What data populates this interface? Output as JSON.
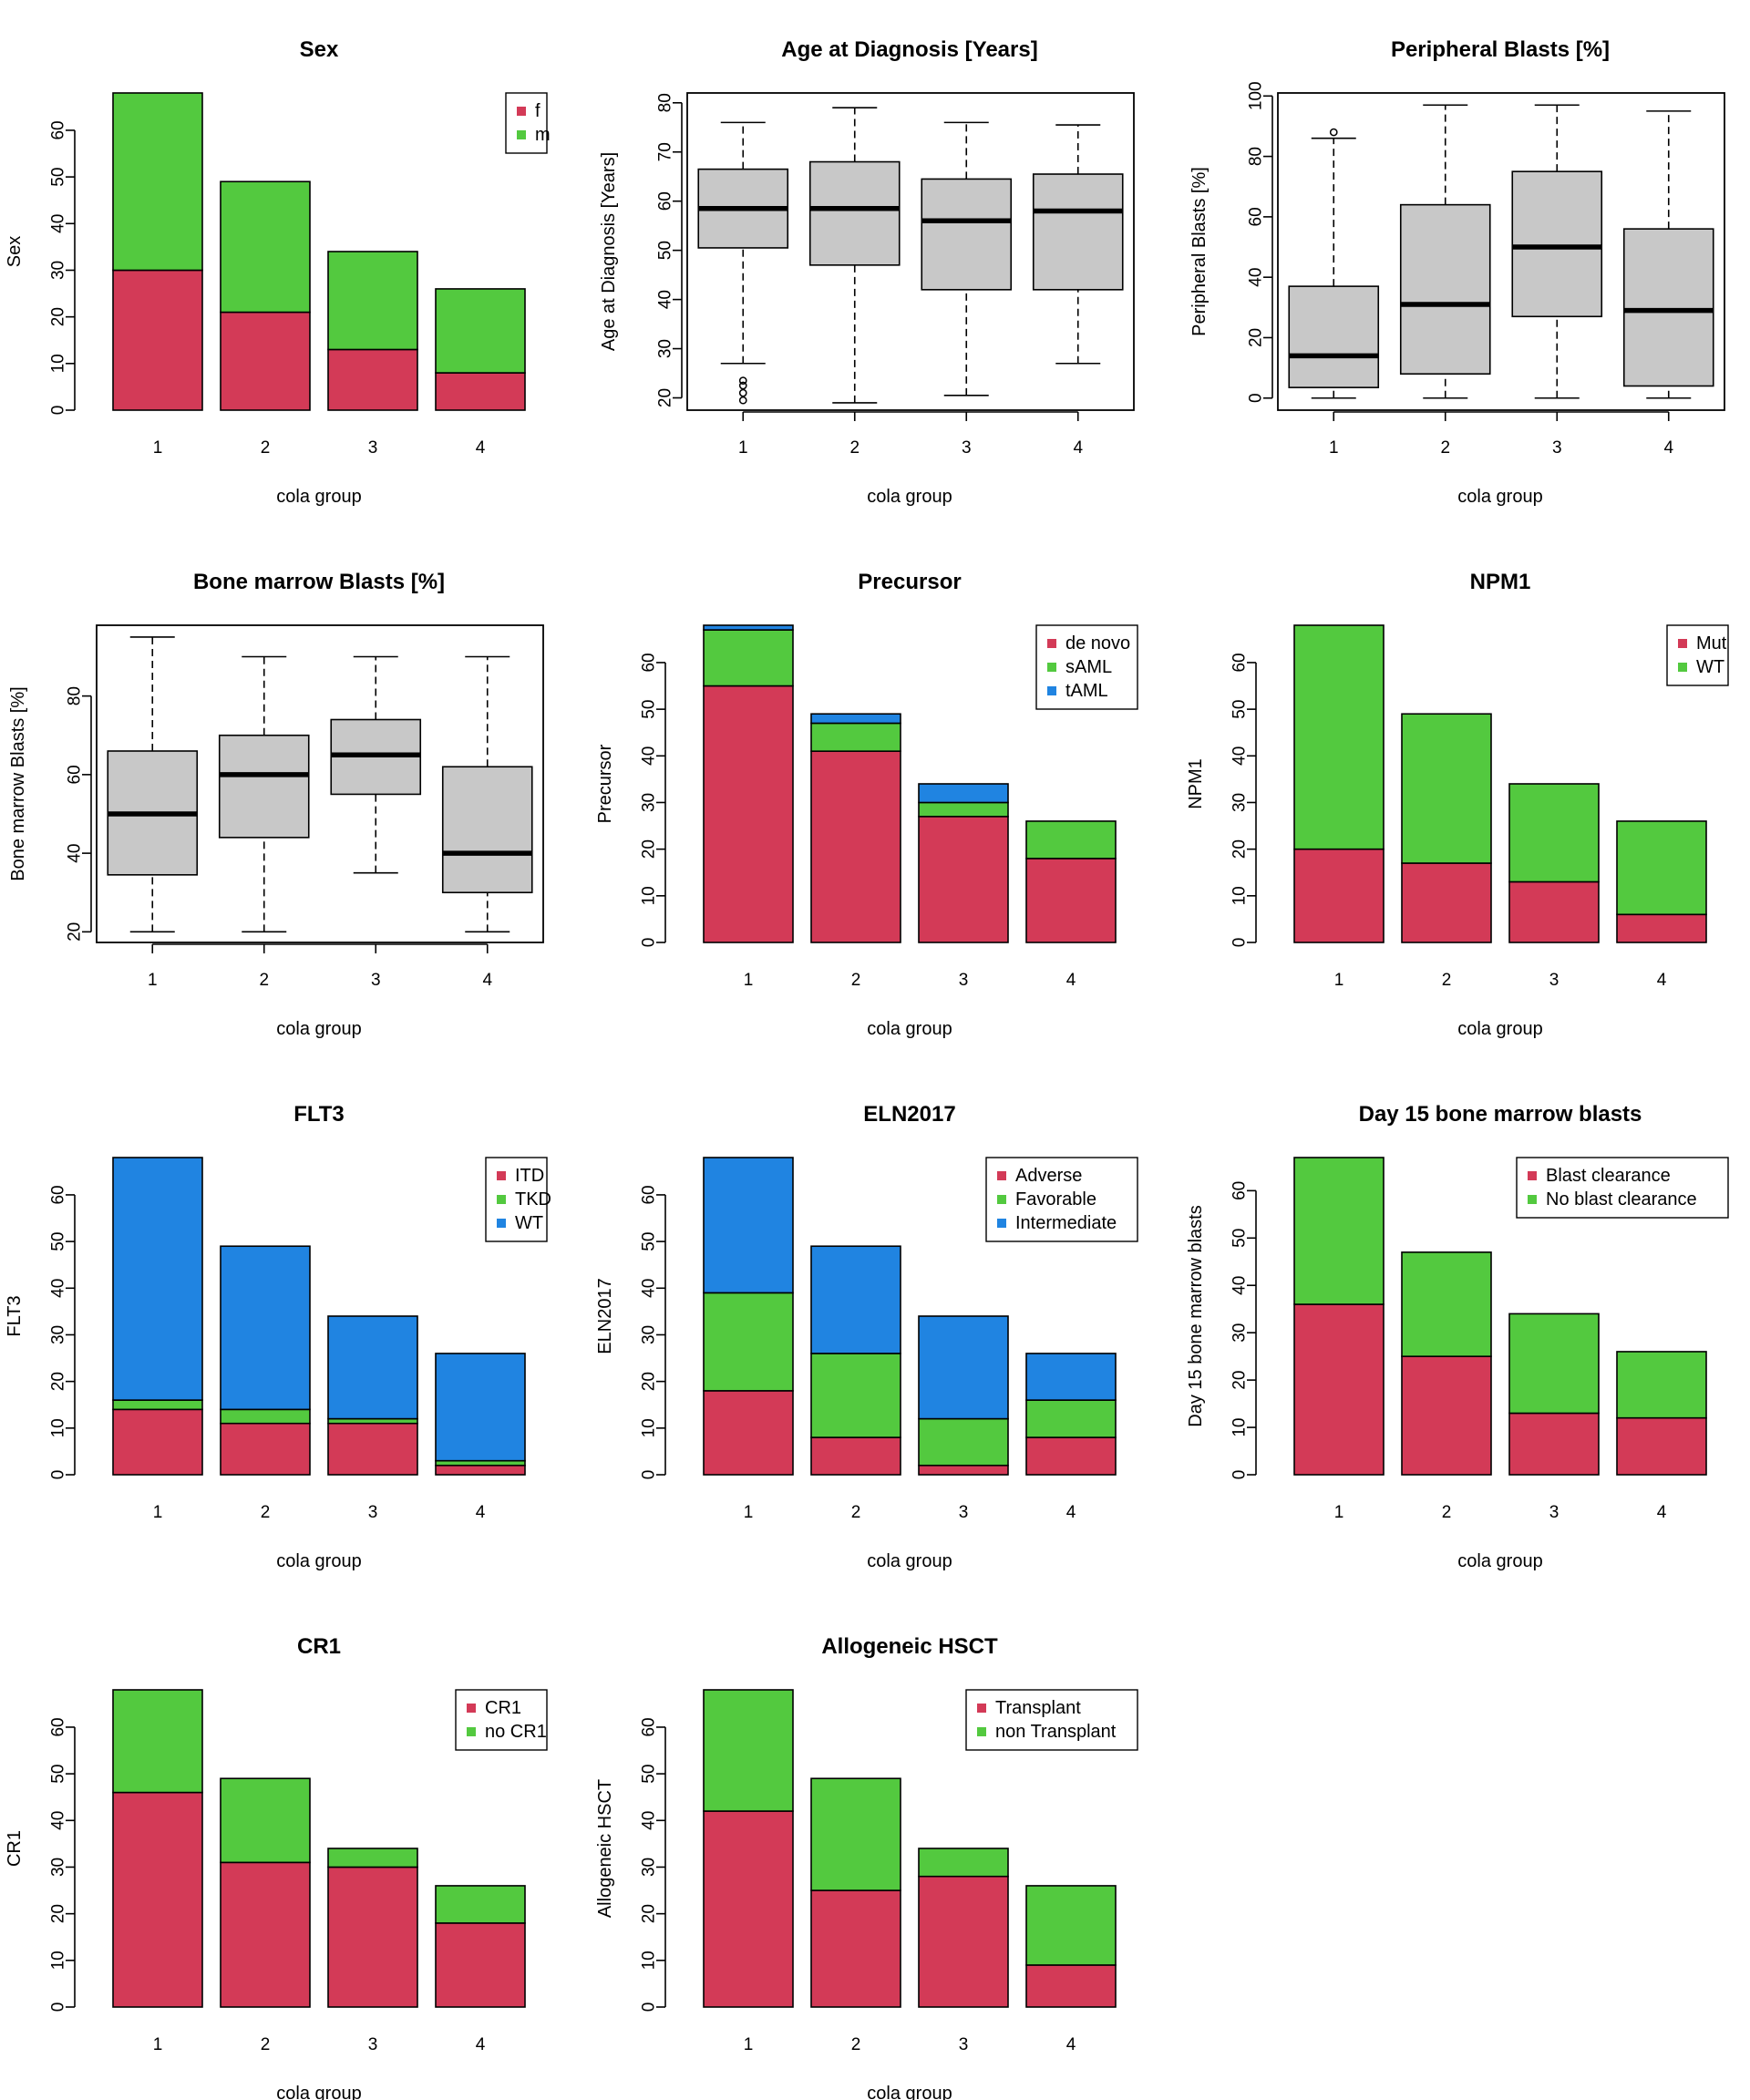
{
  "colors": {
    "red": "#D33A57",
    "green": "#53C93F",
    "blue": "#2084E1",
    "box": "#C8C8C8"
  },
  "chart_data": [
    {
      "type": "bar",
      "title": "Sex",
      "xlabel": "cola group",
      "ylabel": "Sex",
      "categories": [
        "1",
        "2",
        "3",
        "4"
      ],
      "ylim": [
        0,
        68
      ],
      "yticks": [
        0,
        10,
        20,
        30,
        40,
        50,
        60
      ],
      "legend_position": "top-right",
      "series": [
        {
          "name": "f",
          "color": "red",
          "values": [
            30,
            21,
            13,
            8
          ]
        },
        {
          "name": "m",
          "color": "green",
          "values": [
            38,
            28,
            21,
            18
          ]
        }
      ]
    },
    {
      "type": "box",
      "title": "Age at Diagnosis [Years]",
      "xlabel": "cola group",
      "ylabel": "Age at Diagnosis [Years]",
      "categories": [
        "1",
        "2",
        "3",
        "4"
      ],
      "ylim": [
        17.5,
        82
      ],
      "yticks": [
        20,
        30,
        40,
        50,
        60,
        70,
        80
      ],
      "boxes": [
        {
          "min": 27,
          "q1": 50.5,
          "median": 58.5,
          "q3": 66.5,
          "max": 76,
          "outliers": [
            19.5,
            21,
            22.5,
            23.5
          ]
        },
        {
          "min": 19,
          "q1": 47,
          "median": 58.5,
          "q3": 68,
          "max": 79,
          "outliers": []
        },
        {
          "min": 20.5,
          "q1": 42,
          "median": 56,
          "q3": 64.5,
          "max": 76,
          "outliers": []
        },
        {
          "min": 27,
          "q1": 42,
          "median": 58,
          "q3": 65.5,
          "max": 75.5,
          "outliers": []
        }
      ]
    },
    {
      "type": "box",
      "title": "Peripheral Blasts [%]",
      "xlabel": "cola group",
      "ylabel": "Peripheral Blasts [%]",
      "categories": [
        "1",
        "2",
        "3",
        "4"
      ],
      "ylim": [
        -4,
        101
      ],
      "yticks": [
        0,
        20,
        40,
        60,
        80,
        100
      ],
      "boxes": [
        {
          "min": 0,
          "q1": 3.5,
          "median": 14,
          "q3": 37,
          "max": 86,
          "outliers": [
            88
          ]
        },
        {
          "min": 0,
          "q1": 8,
          "median": 31,
          "q3": 64,
          "max": 97,
          "outliers": []
        },
        {
          "min": 0,
          "q1": 27,
          "median": 50,
          "q3": 75,
          "max": 97,
          "outliers": []
        },
        {
          "min": 0,
          "q1": 4,
          "median": 29,
          "q3": 56,
          "max": 95,
          "outliers": []
        }
      ]
    },
    {
      "type": "box",
      "title": "Bone marrow Blasts [%]",
      "xlabel": "cola group",
      "ylabel": "Bone marrow Blasts [%]",
      "categories": [
        "1",
        "2",
        "3",
        "4"
      ],
      "ylim": [
        17.3,
        98
      ],
      "yticks": [
        20,
        40,
        60,
        80
      ],
      "boxes": [
        {
          "min": 20,
          "q1": 34.5,
          "median": 50,
          "q3": 66,
          "max": 95,
          "outliers": []
        },
        {
          "min": 20,
          "q1": 44,
          "median": 60,
          "q3": 70,
          "max": 90,
          "outliers": []
        },
        {
          "min": 35,
          "q1": 55,
          "median": 65,
          "q3": 74,
          "max": 90,
          "outliers": []
        },
        {
          "min": 20,
          "q1": 30,
          "median": 40,
          "q3": 62,
          "max": 90,
          "outliers": []
        }
      ]
    },
    {
      "type": "bar",
      "title": "Precursor",
      "xlabel": "cola group",
      "ylabel": "Precursor",
      "categories": [
        "1",
        "2",
        "3",
        "4"
      ],
      "ylim": [
        0,
        68
      ],
      "yticks": [
        0,
        10,
        20,
        30,
        40,
        50,
        60
      ],
      "legend_position": "top-right",
      "series": [
        {
          "name": "de novo",
          "color": "red",
          "values": [
            55,
            41,
            27,
            18
          ]
        },
        {
          "name": "sAML",
          "color": "green",
          "values": [
            12,
            6,
            3,
            8
          ]
        },
        {
          "name": "tAML",
          "color": "blue",
          "values": [
            1,
            2,
            4,
            0
          ]
        }
      ]
    },
    {
      "type": "bar",
      "title": "NPM1",
      "xlabel": "cola group",
      "ylabel": "NPM1",
      "categories": [
        "1",
        "2",
        "3",
        "4"
      ],
      "ylim": [
        0,
        68
      ],
      "yticks": [
        0,
        10,
        20,
        30,
        40,
        50,
        60
      ],
      "legend_position": "top-right",
      "series": [
        {
          "name": "Mut",
          "color": "red",
          "values": [
            20,
            17,
            13,
            6
          ]
        },
        {
          "name": "WT",
          "color": "green",
          "values": [
            48,
            32,
            21,
            20
          ]
        }
      ]
    },
    {
      "type": "bar",
      "title": "FLT3",
      "xlabel": "cola group",
      "ylabel": "FLT3",
      "categories": [
        "1",
        "2",
        "3",
        "4"
      ],
      "ylim": [
        0,
        68
      ],
      "yticks": [
        0,
        10,
        20,
        30,
        40,
        50,
        60
      ],
      "legend_position": "top-right",
      "series": [
        {
          "name": "ITD",
          "color": "red",
          "values": [
            14,
            11,
            11,
            2
          ]
        },
        {
          "name": "TKD",
          "color": "green",
          "values": [
            2,
            3,
            1,
            1
          ]
        },
        {
          "name": "WT",
          "color": "blue",
          "values": [
            52,
            35,
            22,
            23
          ]
        }
      ]
    },
    {
      "type": "bar",
      "title": "ELN2017",
      "xlabel": "cola group",
      "ylabel": "ELN2017",
      "categories": [
        "1",
        "2",
        "3",
        "4"
      ],
      "ylim": [
        0,
        68
      ],
      "yticks": [
        0,
        10,
        20,
        30,
        40,
        50,
        60
      ],
      "legend_position": "top-right",
      "series": [
        {
          "name": "Adverse",
          "color": "red",
          "values": [
            18,
            8,
            2,
            8
          ]
        },
        {
          "name": "Favorable",
          "color": "green",
          "values": [
            21,
            18,
            10,
            8
          ]
        },
        {
          "name": "Intermediate",
          "color": "blue",
          "values": [
            29,
            23,
            22,
            10
          ]
        }
      ]
    },
    {
      "type": "bar",
      "title": "Day 15 bone marrow blasts",
      "xlabel": "cola group",
      "ylabel": "Day 15 bone marrow blasts",
      "categories": [
        "1",
        "2",
        "3",
        "4"
      ],
      "ylim": [
        0,
        67
      ],
      "yticks": [
        0,
        10,
        20,
        30,
        40,
        50,
        60
      ],
      "legend_position": "top-right",
      "series": [
        {
          "name": "Blast clearance",
          "color": "red",
          "values": [
            36,
            25,
            13,
            12
          ]
        },
        {
          "name": "No blast clearance",
          "color": "green",
          "values": [
            31,
            22,
            21,
            14
          ]
        }
      ]
    },
    {
      "type": "bar",
      "title": "CR1",
      "xlabel": "cola group",
      "ylabel": "CR1",
      "categories": [
        "1",
        "2",
        "3",
        "4"
      ],
      "ylim": [
        0,
        68
      ],
      "yticks": [
        0,
        10,
        20,
        30,
        40,
        50,
        60
      ],
      "legend_position": "top-right",
      "series": [
        {
          "name": "CR1",
          "color": "red",
          "values": [
            46,
            31,
            30,
            18
          ]
        },
        {
          "name": "no CR1",
          "color": "green",
          "values": [
            22,
            18,
            4,
            8
          ]
        }
      ]
    },
    {
      "type": "bar",
      "title": "Allogeneic HSCT",
      "xlabel": "cola group",
      "ylabel": "Allogeneic HSCT",
      "categories": [
        "1",
        "2",
        "3",
        "4"
      ],
      "ylim": [
        0,
        68
      ],
      "yticks": [
        0,
        10,
        20,
        30,
        40,
        50,
        60
      ],
      "legend_position": "top-right",
      "series": [
        {
          "name": "Transplant",
          "color": "red",
          "values": [
            42,
            25,
            28,
            9
          ]
        },
        {
          "name": "non Transplant",
          "color": "green",
          "values": [
            26,
            24,
            6,
            17
          ]
        }
      ]
    }
  ]
}
